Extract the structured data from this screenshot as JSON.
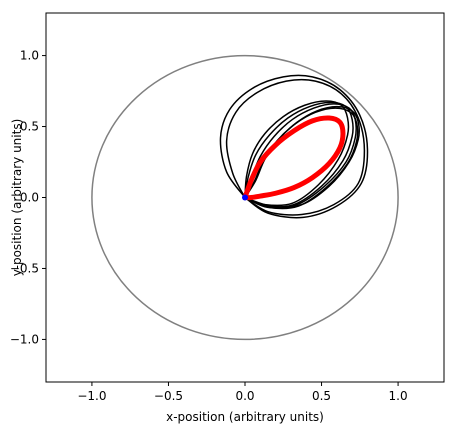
{
  "chart_data": {
    "type": "line",
    "title": "",
    "xlabel": "x-position (arbitrary units)",
    "ylabel": "y-position (arbitrary units)",
    "xlim": [
      -1.3,
      1.3
    ],
    "ylim": [
      -1.3,
      1.3
    ],
    "xticks": [
      "−1.0",
      "−0.5",
      "0.0",
      "0.5",
      "1.0"
    ],
    "yticks": [
      "−1.0",
      "−0.5",
      "0.0",
      "0.5",
      "1.0"
    ],
    "xtick_values": [
      -1.0,
      -0.5,
      0.0,
      0.5,
      1.0
    ],
    "ytick_values": [
      -1.0,
      -0.5,
      0.0,
      0.5,
      1.0
    ],
    "grid": false,
    "aspect": "equal",
    "series": [
      {
        "kind": "circle",
        "color": "#808080",
        "center": [
          0.0,
          0.0
        ],
        "radius": 1.0
      },
      {
        "kind": "orbit-black",
        "color": "#000000",
        "loops": [
          {
            "x": [
              0.0,
              -0.12,
              -0.16,
              -0.1,
              0.05,
              0.25,
              0.44,
              0.62,
              0.75,
              0.8,
              0.76,
              0.6,
              0.38,
              0.15,
              0.0
            ],
            "y": [
              0.0,
              0.18,
              0.42,
              0.62,
              0.77,
              0.85,
              0.85,
              0.76,
              0.58,
              0.34,
              0.1,
              -0.06,
              -0.14,
              -0.11,
              0.0
            ]
          },
          {
            "x": [
              0.0,
              -0.08,
              -0.12,
              -0.06,
              0.08,
              0.27,
              0.46,
              0.63,
              0.74,
              0.78,
              0.74,
              0.58,
              0.37,
              0.15,
              0.0
            ],
            "y": [
              0.0,
              0.17,
              0.4,
              0.6,
              0.74,
              0.82,
              0.82,
              0.73,
              0.56,
              0.33,
              0.1,
              -0.05,
              -0.12,
              -0.1,
              0.0
            ]
          },
          {
            "x": [
              0.0,
              0.02,
              0.07,
              0.16,
              0.28,
              0.42,
              0.56,
              0.66,
              0.7,
              0.7,
              0.64,
              0.5,
              0.32,
              0.14,
              0.0
            ],
            "y": [
              0.0,
              0.14,
              0.3,
              0.44,
              0.56,
              0.64,
              0.67,
              0.64,
              0.55,
              0.43,
              0.26,
              0.08,
              -0.05,
              -0.06,
              0.0
            ]
          },
          {
            "x": [
              0.0,
              0.04,
              0.1,
              0.19,
              0.31,
              0.45,
              0.58,
              0.68,
              0.72,
              0.72,
              0.66,
              0.52,
              0.34,
              0.15,
              0.0
            ],
            "y": [
              0.0,
              0.13,
              0.29,
              0.43,
              0.55,
              0.63,
              0.66,
              0.63,
              0.55,
              0.42,
              0.25,
              0.08,
              -0.05,
              -0.07,
              0.0
            ]
          },
          {
            "x": [
              0.0,
              0.07,
              0.13,
              0.22,
              0.34,
              0.47,
              0.6,
              0.7,
              0.74,
              0.74,
              0.68,
              0.55,
              0.37,
              0.17,
              0.0
            ],
            "y": [
              0.0,
              0.12,
              0.27,
              0.41,
              0.53,
              0.61,
              0.64,
              0.61,
              0.53,
              0.41,
              0.25,
              0.08,
              -0.05,
              -0.06,
              0.0
            ]
          },
          {
            "x": [
              0.0,
              0.01,
              0.05,
              0.13,
              0.25,
              0.39,
              0.53,
              0.63,
              0.67,
              0.67,
              0.61,
              0.48,
              0.31,
              0.13,
              0.0
            ],
            "y": [
              0.0,
              0.15,
              0.31,
              0.45,
              0.57,
              0.65,
              0.68,
              0.65,
              0.56,
              0.44,
              0.27,
              0.09,
              -0.04,
              -0.05,
              0.0
            ]
          },
          {
            "x": [
              0.0,
              0.06,
              0.12,
              0.21,
              0.33,
              0.46,
              0.59,
              0.69,
              0.73,
              0.73,
              0.67,
              0.53,
              0.35,
              0.16,
              0.0
            ],
            "y": [
              0.0,
              0.11,
              0.26,
              0.4,
              0.52,
              0.6,
              0.63,
              0.6,
              0.52,
              0.4,
              0.24,
              0.07,
              -0.06,
              -0.07,
              0.0
            ]
          }
        ]
      },
      {
        "kind": "orbit-red",
        "color": "#ff0000",
        "x": [
          0.0,
          0.04,
          0.1,
          0.2,
          0.32,
          0.44,
          0.55,
          0.62,
          0.64,
          0.62,
          0.55,
          0.44,
          0.32,
          0.2,
          0.1,
          0.04,
          0.0
        ],
        "y": [
          0.0,
          0.12,
          0.25,
          0.37,
          0.47,
          0.54,
          0.56,
          0.53,
          0.45,
          0.35,
          0.24,
          0.14,
          0.07,
          0.03,
          0.01,
          0.0,
          0.0
        ]
      },
      {
        "kind": "point",
        "color": "#0000ff",
        "x": 0.0,
        "y": 0.0
      }
    ]
  }
}
